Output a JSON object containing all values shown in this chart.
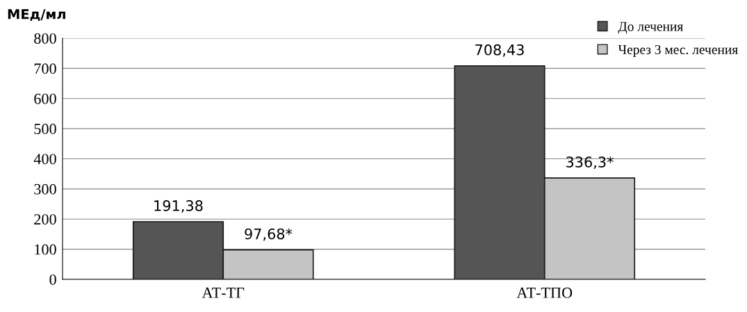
{
  "chart_data": {
    "type": "bar",
    "ylabel": "МЕд/мл",
    "categories": [
      "АТ-ТГ",
      "АТ-ТПО"
    ],
    "series": [
      {
        "name": "До лечения",
        "color": "#555555",
        "values": [
          191.38,
          708.43
        ],
        "value_labels": [
          "191,38",
          "708,43"
        ]
      },
      {
        "name": "Через 3 мес. лечения",
        "color": "#c4c4c4",
        "values": [
          97.68,
          336.3
        ],
        "value_labels": [
          "97,68*",
          "336,3*"
        ]
      }
    ],
    "ylim": [
      0,
      800
    ],
    "yticks": [
      0,
      100,
      200,
      300,
      400,
      500,
      600,
      700,
      800
    ],
    "grid": "y",
    "legend": "top right"
  }
}
